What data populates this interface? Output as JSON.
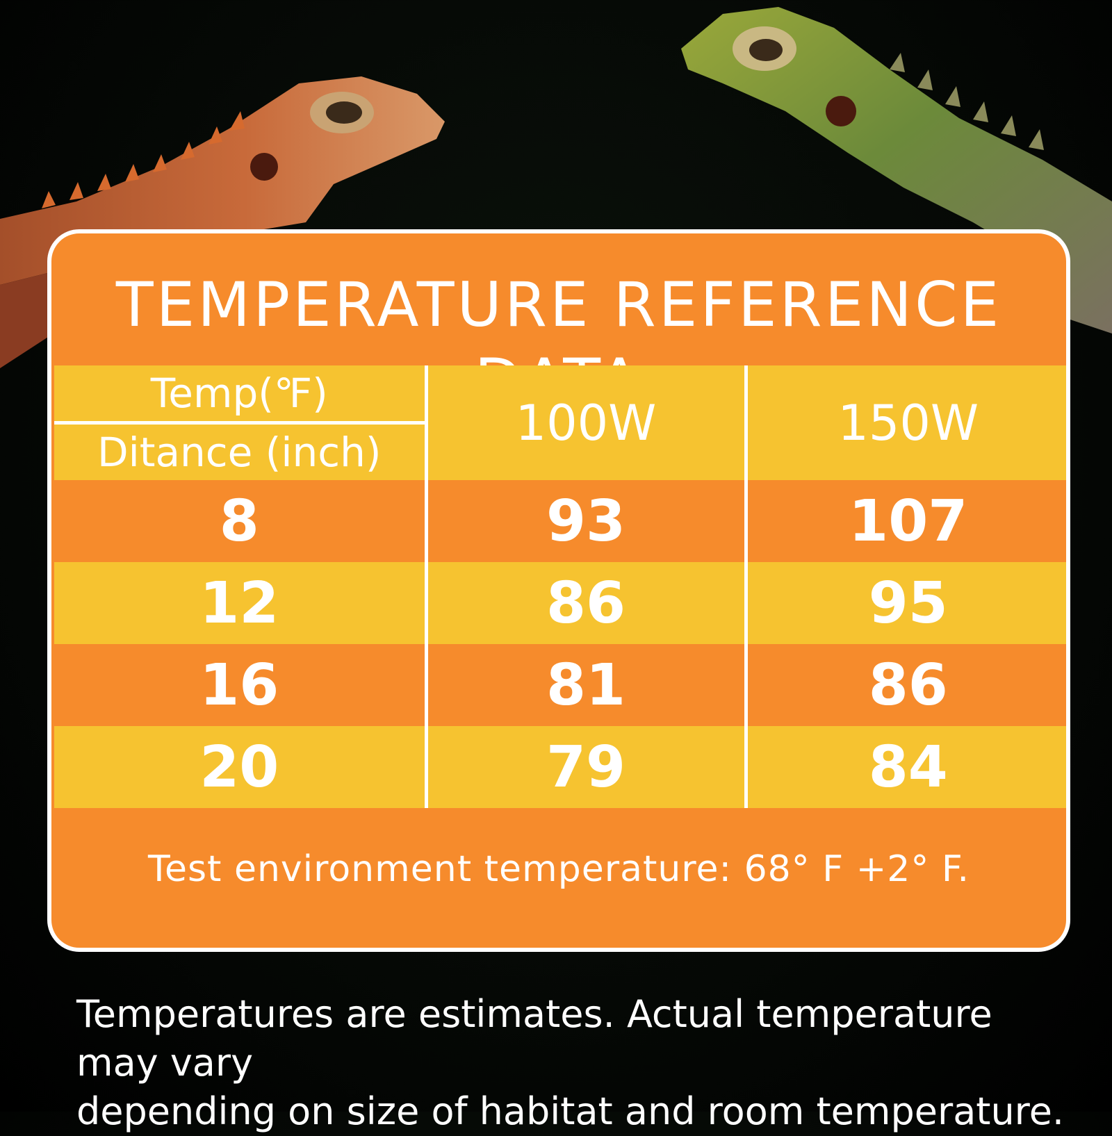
{
  "card": {
    "title": "TEMPERATURE REFERENCE DATA",
    "header": {
      "temp_label": "Temp(℉)",
      "distance_label": "Ditance (inch)",
      "columns": [
        "100W",
        "150W"
      ]
    },
    "rows": [
      {
        "distance": "8",
        "w100": "93",
        "w150": "107"
      },
      {
        "distance": "12",
        "w100": "86",
        "w150": "95"
      },
      {
        "distance": "16",
        "w100": "81",
        "w150": "86"
      },
      {
        "distance": "20",
        "w100": "79",
        "w150": "84"
      }
    ],
    "env_note": "Test environment temperature: 68° F +2° F."
  },
  "disclaimer": {
    "line1": "Temperatures are estimates. Actual temperature may vary",
    "line2": "depending on size of habitat and  room temperature."
  },
  "colors": {
    "orange": "#f68b2c",
    "yellow": "#f6c330",
    "white": "#ffffff",
    "background": "#050805"
  }
}
